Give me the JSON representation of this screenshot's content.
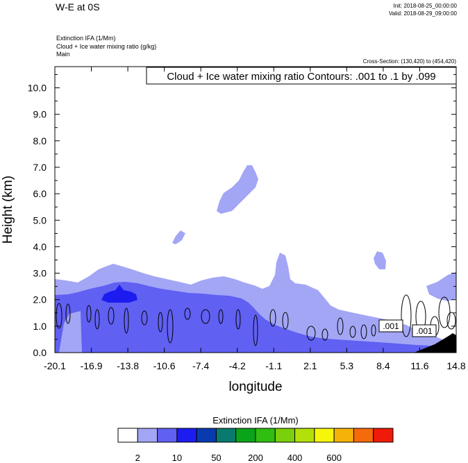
{
  "header": {
    "title": "W-E at 0S",
    "init": "Init: 2018-08-25_00:00:00",
    "valid": "Valid: 2018-08-29_09:00:00",
    "field1": "Extinction IFA   (1/Mm)",
    "field2": "Cloud + Ice water mixing ratio   (g/kg)",
    "field3": "Main",
    "cross_section": "Cross-Section: (130,420) to (454,420)"
  },
  "chart_data": {
    "type": "filled-contour cross-section",
    "title": "W-E at 0S",
    "xlabel": "longitude",
    "ylabel": "Height (km)",
    "xlim": [
      -20.1,
      14.8
    ],
    "ylim": [
      0.0,
      10.8
    ],
    "x_ticks": [
      "-20.1",
      "-16.9",
      "-13.8",
      "-10.6",
      "-7.4",
      "-4.2",
      "-1.1",
      "2.1",
      "5.3",
      "8.4",
      "11.6",
      "14.8"
    ],
    "y_ticks": [
      "0.0",
      "1.0",
      "2.0",
      "3.0",
      "4.0",
      "5.0",
      "6.0",
      "7.0",
      "8.0",
      "9.0",
      "10.0"
    ],
    "contour_info": "Cloud + Ice water mixing ratio Contours: .001 to .1 by .099",
    "contour_labels": [
      ".001",
      ".001"
    ],
    "colorbar": {
      "title": "Extinction IFA  (1/Mm)",
      "tick_labels": [
        "2",
        "10",
        "50",
        "200",
        "400",
        "600"
      ],
      "colors": [
        "#ffffff",
        "#a3a6f5",
        "#6060f2",
        "#1c1cf0",
        "#0a3ab0",
        "#0a7a70",
        "#0aa41a",
        "#30be10",
        "#7ad00a",
        "#b4e00a",
        "#f6f60a",
        "#f5b30a",
        "#f56a0a",
        "#f01a0a"
      ]
    },
    "regions": [
      {
        "level": "2-10",
        "color": "#a3a6f5",
        "description": "light blue aerosol layer up to ~3.3 km and elevated plumes"
      },
      {
        "level": "10-50",
        "color": "#6060f2",
        "description": "medium blue layer below ~2.2 km"
      },
      {
        "level": "50-200",
        "color": "#1c1cf0",
        "description": "dense core near 2 km at -13.8"
      }
    ]
  }
}
